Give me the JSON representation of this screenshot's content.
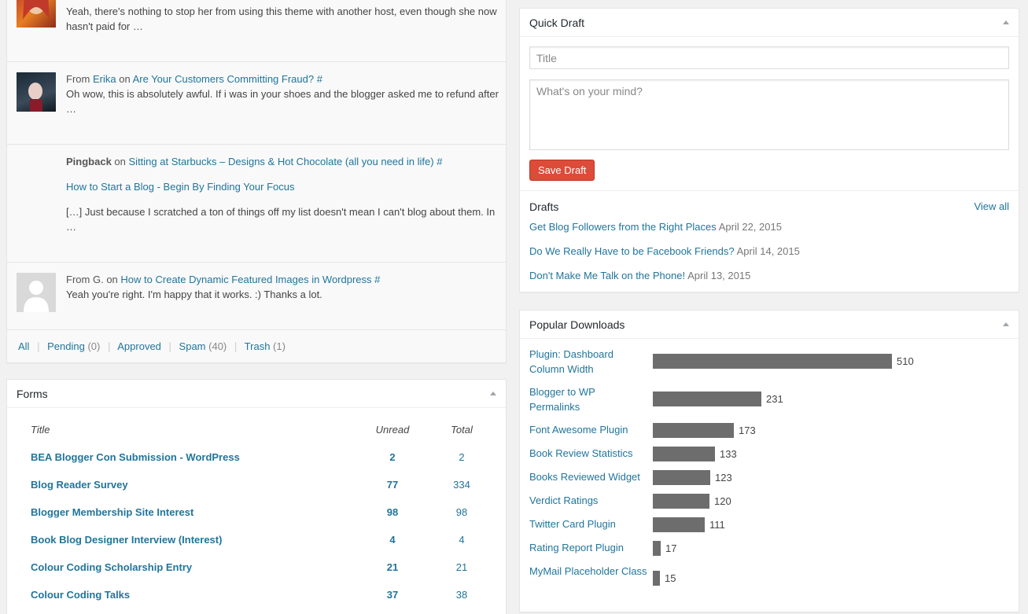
{
  "activity": {
    "comments": [
      {
        "text": "Yeah, there's nothing to stop her from using this theme with another host, even though she now hasn't paid for …"
      },
      {
        "from_label": "From",
        "author": "Erika",
        "on_label": "on",
        "post": "Are Your Customers Committing Fraud?",
        "hash": "#",
        "text": "Oh wow, this is absolutely awful. If i was in your shoes and the blogger asked me to refund after …"
      },
      {
        "type_label": "Pingback",
        "on_label": "on",
        "post": "Sitting at Starbucks – Designs & Hot Chocolate (all you need in life)",
        "hash": "#",
        "link": "How to Start a Blog - Begin By Finding Your Focus",
        "text": "[…] Just because I scratched a ton of things off my list doesn't mean I can't blog about them. In …"
      },
      {
        "from_label": "From",
        "author": "G.",
        "on_label": "on",
        "post": "How to Create Dynamic Featured Images in Wordpress",
        "hash": "#",
        "text": "Yeah you're right. I'm happy that it works. :) Thanks a lot."
      }
    ],
    "filters": [
      {
        "label": "All",
        "count": ""
      },
      {
        "label": "Pending",
        "count": "(0)"
      },
      {
        "label": "Approved",
        "count": ""
      },
      {
        "label": "Spam",
        "count": "(40)"
      },
      {
        "label": "Trash",
        "count": "(1)"
      }
    ]
  },
  "forms": {
    "title": "Forms",
    "columns": {
      "title": "Title",
      "unread": "Unread",
      "total": "Total"
    },
    "rows": [
      {
        "title": "BEA Blogger Con Submission - WordPress",
        "unread": "2",
        "total": "2"
      },
      {
        "title": "Blog Reader Survey",
        "unread": "77",
        "total": "334"
      },
      {
        "title": "Blogger Membership Site Interest",
        "unread": "98",
        "total": "98"
      },
      {
        "title": "Book Blog Designer Interview (Interest)",
        "unread": "4",
        "total": "4"
      },
      {
        "title": "Colour Coding Scholarship Entry",
        "unread": "21",
        "total": "21"
      },
      {
        "title": "Colour Coding Talks",
        "unread": "37",
        "total": "38"
      }
    ]
  },
  "quick_draft": {
    "title": "Quick Draft",
    "title_placeholder": "Title",
    "content_placeholder": "What's on your mind?",
    "save_label": "Save Draft",
    "drafts_label": "Drafts",
    "view_all": "View all",
    "drafts": [
      {
        "title": "Get Blog Followers from the Right Places",
        "date": "April 22, 2015"
      },
      {
        "title": "Do We Really Have to be Facebook Friends?",
        "date": "April 14, 2015"
      },
      {
        "title": "Don't Make Me Talk on the Phone!",
        "date": "April 13, 2015"
      }
    ]
  },
  "downloads": {
    "title": "Popular Downloads",
    "bar_color": "#6d6d6d",
    "max": 510,
    "items": [
      {
        "label": "Plugin: Dashboard Column Width",
        "value": 510
      },
      {
        "label": "Blogger to WP Permalinks",
        "value": 231
      },
      {
        "label": "Font Awesome Plugin",
        "value": 173
      },
      {
        "label": "Book Review Statistics",
        "value": 133
      },
      {
        "label": "Books Reviewed Widget",
        "value": 123
      },
      {
        "label": "Verdict Ratings",
        "value": 120
      },
      {
        "label": "Twitter Card Plugin",
        "value": 111
      },
      {
        "label": "Rating Report Plugin",
        "value": 17
      },
      {
        "label": "MyMail Placeholder Class",
        "value": 15
      }
    ]
  },
  "colors": {
    "link": "#21759b",
    "save_button": "#dd4b39"
  }
}
